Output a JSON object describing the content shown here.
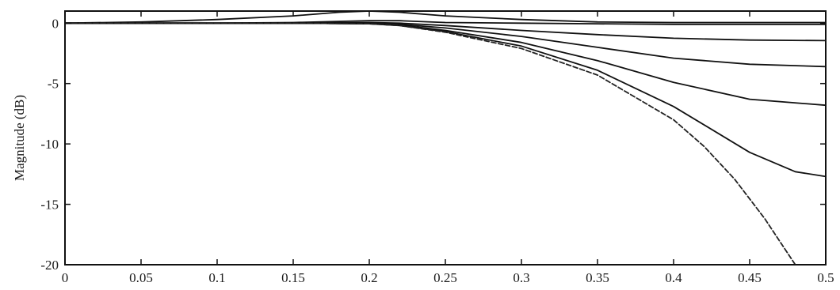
{
  "chart_data": {
    "type": "line",
    "title": "",
    "xlabel": "",
    "ylabel": "Magnitude (dB)",
    "xlim": [
      0,
      0.5
    ],
    "ylim": [
      -20,
      1
    ],
    "grid": false,
    "x_ticks": [
      0,
      0.05,
      0.1,
      0.15,
      0.2,
      0.25,
      0.3,
      0.35,
      0.4,
      0.45,
      0.5
    ],
    "x_tick_labels": [
      "0",
      "0.05",
      "0.1",
      "0.15",
      "0.2",
      "0.25",
      "0.3",
      "0.35",
      "0.4",
      "0.45",
      "0.5"
    ],
    "y_ticks": [
      0,
      -5,
      -10,
      -15,
      -20
    ],
    "y_tick_labels": [
      "0",
      "-5",
      "-10",
      "-15",
      "-20"
    ],
    "series": [
      {
        "color": "#111111",
        "dashed": false,
        "x": [
          0,
          0.05,
          0.1,
          0.15,
          0.18,
          0.2,
          0.22,
          0.25,
          0.3,
          0.35,
          0.4,
          0.45,
          0.5
        ],
        "y": [
          0,
          0.1,
          0.3,
          0.6,
          0.9,
          1.0,
          0.9,
          0.6,
          0.3,
          0.1,
          0.05,
          0.05,
          0.05
        ]
      },
      {
        "color": "#111111",
        "dashed": false,
        "x": [
          0,
          0.1,
          0.15,
          0.2,
          0.22,
          0.25,
          0.3,
          0.35,
          0.4,
          0.45,
          0.5
        ],
        "y": [
          0,
          0,
          0.05,
          0.2,
          0.2,
          0.05,
          0,
          -0.05,
          -0.1,
          -0.1,
          -0.1
        ]
      },
      {
        "color": "#111111",
        "dashed": false,
        "x": [
          0,
          0.1,
          0.15,
          0.2,
          0.22,
          0.25,
          0.3,
          0.35,
          0.4,
          0.45,
          0.5
        ],
        "y": [
          0,
          0,
          0,
          0.05,
          0,
          -0.2,
          -0.6,
          -0.95,
          -1.25,
          -1.4,
          -1.45
        ]
      },
      {
        "color": "#111111",
        "dashed": false,
        "x": [
          0,
          0.1,
          0.15,
          0.2,
          0.22,
          0.25,
          0.3,
          0.35,
          0.4,
          0.45,
          0.5
        ],
        "y": [
          0,
          0,
          0,
          0,
          -0.1,
          -0.4,
          -1.1,
          -2.0,
          -2.9,
          -3.4,
          -3.6
        ]
      },
      {
        "color": "#111111",
        "dashed": false,
        "x": [
          0,
          0.1,
          0.15,
          0.2,
          0.22,
          0.25,
          0.3,
          0.35,
          0.4,
          0.45,
          0.5
        ],
        "y": [
          0,
          0,
          0,
          -0.05,
          -0.15,
          -0.6,
          -1.6,
          -3.1,
          -4.9,
          -6.3,
          -6.8
        ]
      },
      {
        "color": "#111111",
        "dashed": false,
        "x": [
          0,
          0.1,
          0.15,
          0.2,
          0.22,
          0.25,
          0.3,
          0.35,
          0.4,
          0.45,
          0.48,
          0.5
        ],
        "y": [
          0,
          0,
          0,
          -0.05,
          -0.2,
          -0.7,
          -1.9,
          -3.9,
          -6.9,
          -10.7,
          -12.3,
          -12.7
        ]
      },
      {
        "color": "#222222",
        "dashed": true,
        "x": [
          0,
          0.1,
          0.15,
          0.2,
          0.22,
          0.25,
          0.3,
          0.35,
          0.4,
          0.42,
          0.44,
          0.46,
          0.47,
          0.48
        ],
        "y": [
          0,
          0,
          0,
          -0.05,
          -0.2,
          -0.75,
          -2.1,
          -4.3,
          -8.0,
          -10.2,
          -12.9,
          -16.2,
          -18.1,
          -20.0
        ]
      }
    ]
  }
}
